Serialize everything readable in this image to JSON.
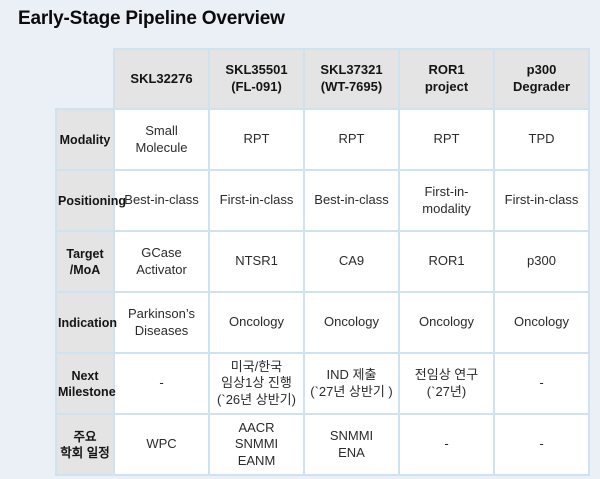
{
  "chart_data": {
    "type": "table",
    "title": "Early-Stage Pipeline Overview",
    "corner": "",
    "columns": [
      "SKL32276",
      "SKL35501\n(FL-091)",
      "SKL37321\n(WT-7695)",
      "ROR1\nproject",
      "p300\nDegrader"
    ],
    "rows": [
      {
        "label": "Modality",
        "cells": [
          "Small\nMolecule",
          "RPT",
          "RPT",
          "RPT",
          "TPD"
        ]
      },
      {
        "label": "Positioning",
        "cells": [
          "Best-in-class",
          "First-in-class",
          "Best-in-class",
          "First-in-\nmodality",
          "First-in-class"
        ]
      },
      {
        "label": "Target\n/MoA",
        "cells": [
          "GCase\nActivator",
          "NTSR1",
          "CA9",
          "ROR1",
          "p300"
        ]
      },
      {
        "label": "Indication",
        "cells": [
          "Parkinson’s\nDiseases",
          "Oncology",
          "Oncology",
          "Oncology",
          "Oncology"
        ]
      },
      {
        "label": "Next\nMilestone",
        "cells": [
          "-",
          "미국/한국\n임상1상 진행\n(`26년 상반기)",
          "IND 제출\n(`27년 상반기 )",
          "전임상 연구\n(`27년)",
          "-"
        ]
      },
      {
        "label": "주요\n학회 일정",
        "cells": [
          "WPC",
          "AACR\nSNMMI\nEANM",
          "SNMMI\nENA",
          "-",
          "-"
        ]
      }
    ]
  },
  "colors": {
    "page_background": "#eaf0f6",
    "header_cell_background": "#e4e4e4",
    "data_cell_background": "#ffffff",
    "grid_border": "#cfe2f0",
    "title_text": "#0b0b0b",
    "cell_text": "#2b2b2b"
  }
}
